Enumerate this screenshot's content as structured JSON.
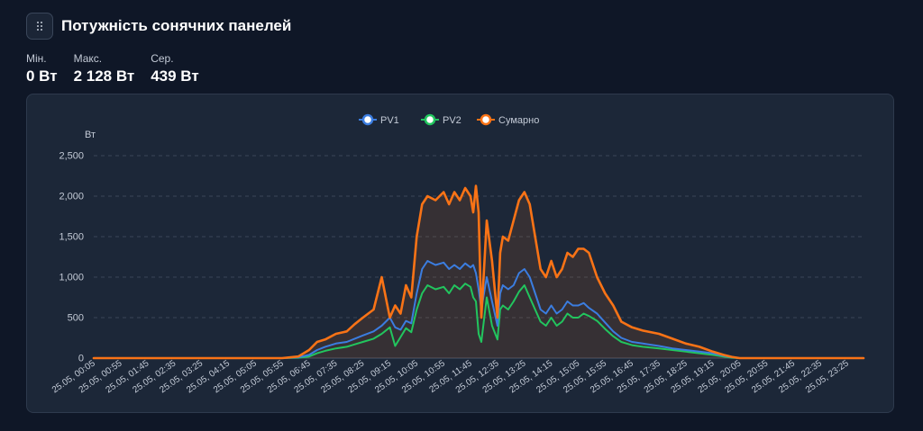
{
  "header": {
    "title": "Потужність сонячних панелей",
    "menu_icon": "dots-grid-icon"
  },
  "stats": [
    {
      "label": "Мін.",
      "value": "0 Вт"
    },
    {
      "label": "Макс.",
      "value": "2 128 Вт"
    },
    {
      "label": "Сер.",
      "value": "439 Вт"
    }
  ],
  "colors": {
    "background": "#0f1727",
    "card": "#1c2738",
    "pv1": "#3b7de0",
    "pv2": "#22c55e",
    "total": "#f97316"
  },
  "chart_data": {
    "type": "line",
    "ylabel": "Вт",
    "ylim": [
      0,
      2500
    ],
    "yticks": [
      0,
      500,
      1000,
      1500,
      2000,
      2500
    ],
    "ytick_labels": [
      "0",
      "500",
      "1,000",
      "1,500",
      "2,000",
      "2,500"
    ],
    "grid": true,
    "legend_position": "top-center",
    "tick_labels": [
      "25.05, 00:05",
      "25.05, 00:55",
      "25.05, 01:45",
      "25.05, 02:35",
      "25.05, 03:25",
      "25.05, 04:15",
      "25.05, 05:05",
      "25.05, 05:55",
      "25.05, 06:45",
      "25.05, 07:35",
      "25.05, 08:25",
      "25.05, 09:15",
      "25.05, 10:05",
      "25.05, 10:55",
      "25.05, 11:45",
      "25.05, 12:35",
      "25.05, 13:25",
      "25.05, 14:15",
      "25.05, 15:05",
      "25.05, 15:55",
      "25.05, 16:45",
      "25.05, 17:35",
      "25.05, 18:25",
      "25.05, 19:15",
      "25.05, 20:05",
      "25.05, 20:55",
      "25.05, 21:45",
      "25.05, 22:35",
      "25.05, 23:25"
    ],
    "x": [
      "00:05",
      "05:05",
      "05:55",
      "06:25",
      "06:45",
      "07:00",
      "07:15",
      "07:35",
      "07:55",
      "08:10",
      "08:25",
      "08:45",
      "09:00",
      "09:15",
      "09:25",
      "09:35",
      "09:45",
      "09:55",
      "10:05",
      "10:15",
      "10:25",
      "10:40",
      "10:55",
      "11:05",
      "11:15",
      "11:25",
      "11:35",
      "11:45",
      "11:50",
      "11:55",
      "12:00",
      "12:05",
      "12:15",
      "12:25",
      "12:35",
      "12:40",
      "12:45",
      "12:55",
      "13:05",
      "13:15",
      "13:25",
      "13:35",
      "13:45",
      "13:55",
      "14:05",
      "14:15",
      "14:25",
      "14:35",
      "14:45",
      "14:55",
      "15:05",
      "15:15",
      "15:25",
      "15:40",
      "15:55",
      "16:10",
      "16:25",
      "16:45",
      "17:05",
      "17:35",
      "18:00",
      "18:25",
      "18:50",
      "19:15",
      "19:35",
      "19:50",
      "20:05",
      "20:20",
      "21:00",
      "22:00",
      "23:00",
      "23:55"
    ],
    "series": [
      {
        "name": "PV1",
        "color": "#3b7de0",
        "values": [
          0,
          0,
          0,
          10,
          40,
          100,
          140,
          180,
          200,
          240,
          280,
          330,
          400,
          500,
          380,
          350,
          460,
          430,
          800,
          1100,
          1200,
          1150,
          1180,
          1100,
          1150,
          1100,
          1170,
          1120,
          1150,
          1050,
          850,
          600,
          1000,
          700,
          400,
          800,
          900,
          850,
          900,
          1050,
          1100,
          1000,
          800,
          600,
          550,
          650,
          550,
          600,
          700,
          650,
          650,
          680,
          620,
          550,
          440,
          330,
          250,
          200,
          180,
          150,
          120,
          100,
          80,
          60,
          30,
          10,
          0,
          0,
          0,
          0,
          0,
          0
        ]
      },
      {
        "name": "PV2",
        "color": "#22c55e",
        "values": [
          0,
          0,
          0,
          5,
          20,
          60,
          90,
          120,
          140,
          170,
          200,
          240,
          300,
          380,
          150,
          260,
          370,
          320,
          600,
          800,
          900,
          850,
          880,
          800,
          900,
          850,
          920,
          880,
          750,
          700,
          300,
          200,
          750,
          400,
          230,
          600,
          650,
          600,
          700,
          820,
          900,
          750,
          600,
          450,
          400,
          500,
          400,
          450,
          550,
          500,
          500,
          550,
          520,
          460,
          360,
          270,
          200,
          160,
          140,
          120,
          100,
          80,
          60,
          40,
          20,
          5,
          0,
          0,
          0,
          0,
          0,
          0
        ]
      },
      {
        "name": "Сумарно",
        "color": "#f97316",
        "values": [
          0,
          0,
          0,
          20,
          100,
          200,
          230,
          300,
          330,
          420,
          500,
          600,
          1000,
          500,
          650,
          550,
          900,
          750,
          1500,
          1900,
          2000,
          1950,
          2050,
          1900,
          2050,
          1950,
          2100,
          2000,
          1800,
          2128,
          1800,
          500,
          1700,
          1200,
          500,
          1300,
          1500,
          1450,
          1700,
          1950,
          2050,
          1900,
          1500,
          1100,
          1000,
          1200,
          1000,
          1100,
          1300,
          1250,
          1350,
          1350,
          1300,
          1000,
          800,
          650,
          450,
          380,
          340,
          300,
          240,
          180,
          140,
          80,
          40,
          15,
          0,
          0,
          0,
          0,
          0,
          0
        ]
      }
    ]
  }
}
